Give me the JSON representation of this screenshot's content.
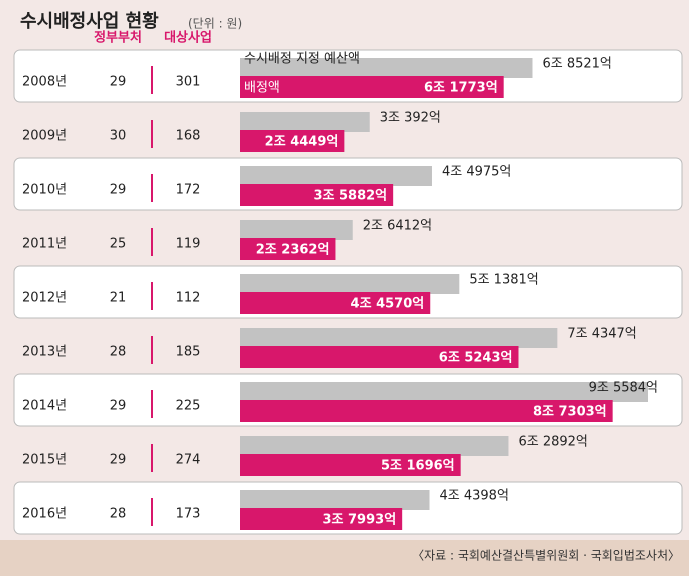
{
  "chart_data": {
    "type": "bar",
    "title": "수시배정사업 현황",
    "unit": "(단위 : 원)",
    "source": "〈자료 : 국회예산결산특별위원회 · 국회입법조사처〉",
    "column_headers": [
      "정부부처",
      "대상사업"
    ],
    "categories": [
      "2008년",
      "2009년",
      "2010년",
      "2011년",
      "2012년",
      "2013년",
      "2014년",
      "2015년",
      "2016년"
    ],
    "ministries": [
      29,
      30,
      29,
      25,
      21,
      28,
      29,
      29,
      28
    ],
    "projects": [
      301,
      168,
      172,
      119,
      112,
      185,
      225,
      274,
      173
    ],
    "series": [
      {
        "name": "수시배정 지정 예산액",
        "color": "#c2c2c2",
        "values": [
          68521,
          30392,
          44975,
          26412,
          51381,
          74347,
          95584,
          62892,
          44398
        ],
        "value_labels": [
          "6조 8521억",
          "3조 392억",
          "4조 4975억",
          "2조 6412억",
          "5조 1381억",
          "7조 4347억",
          "9조 5584억",
          "6조 2892억",
          "4조 4398억"
        ]
      },
      {
        "name": "배정액",
        "color": "#d8176b",
        "values": [
          61773,
          24449,
          35882,
          22362,
          44570,
          65243,
          87303,
          51696,
          37993
        ],
        "value_labels": [
          "6조 1773억",
          "2조 4449억",
          "3조 5882억",
          "2조 2362억",
          "4조 4570억",
          "6조 5243억",
          "8조 7303억",
          "5조 1696억",
          "3조 7993억"
        ]
      }
    ]
  }
}
